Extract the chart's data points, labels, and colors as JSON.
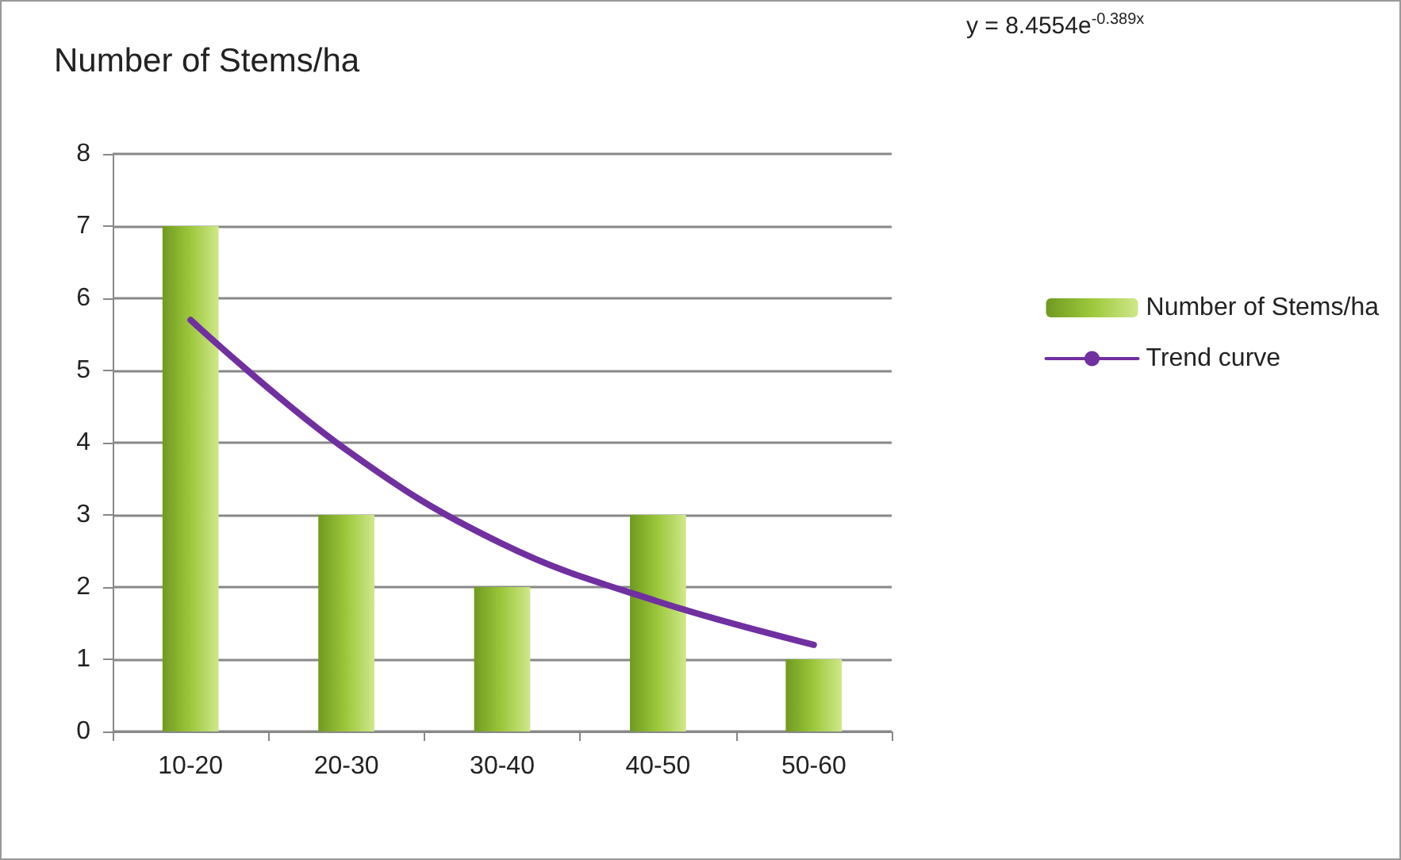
{
  "chart_data": {
    "type": "bar",
    "title": "Number of Stems/ha",
    "annotations": [
      "y = 8.4554e$^{-0.389x}$"
    ],
    "categories": [
      "10-20",
      "20-30",
      "30-40",
      "40-50",
      "50-60"
    ],
    "series": [
      {
        "name": "Number of Stems/ha",
        "color": "#9dc83c",
        "values": [
          7,
          3,
          2,
          3,
          1
        ]
      },
      {
        "name": "Trend curve",
        "type": "line",
        "color": "#7030a0",
        "marker": "none",
        "line_style": "solid",
        "values": [
          5.7,
          3.9,
          2.6,
          1.8,
          1.2
        ]
      }
    ],
    "ylim": [
      0,
      8
    ],
    "yticks": [
      0,
      1,
      2,
      3,
      4,
      5,
      6,
      7,
      8
    ],
    "grid": "y",
    "legend": "right"
  }
}
